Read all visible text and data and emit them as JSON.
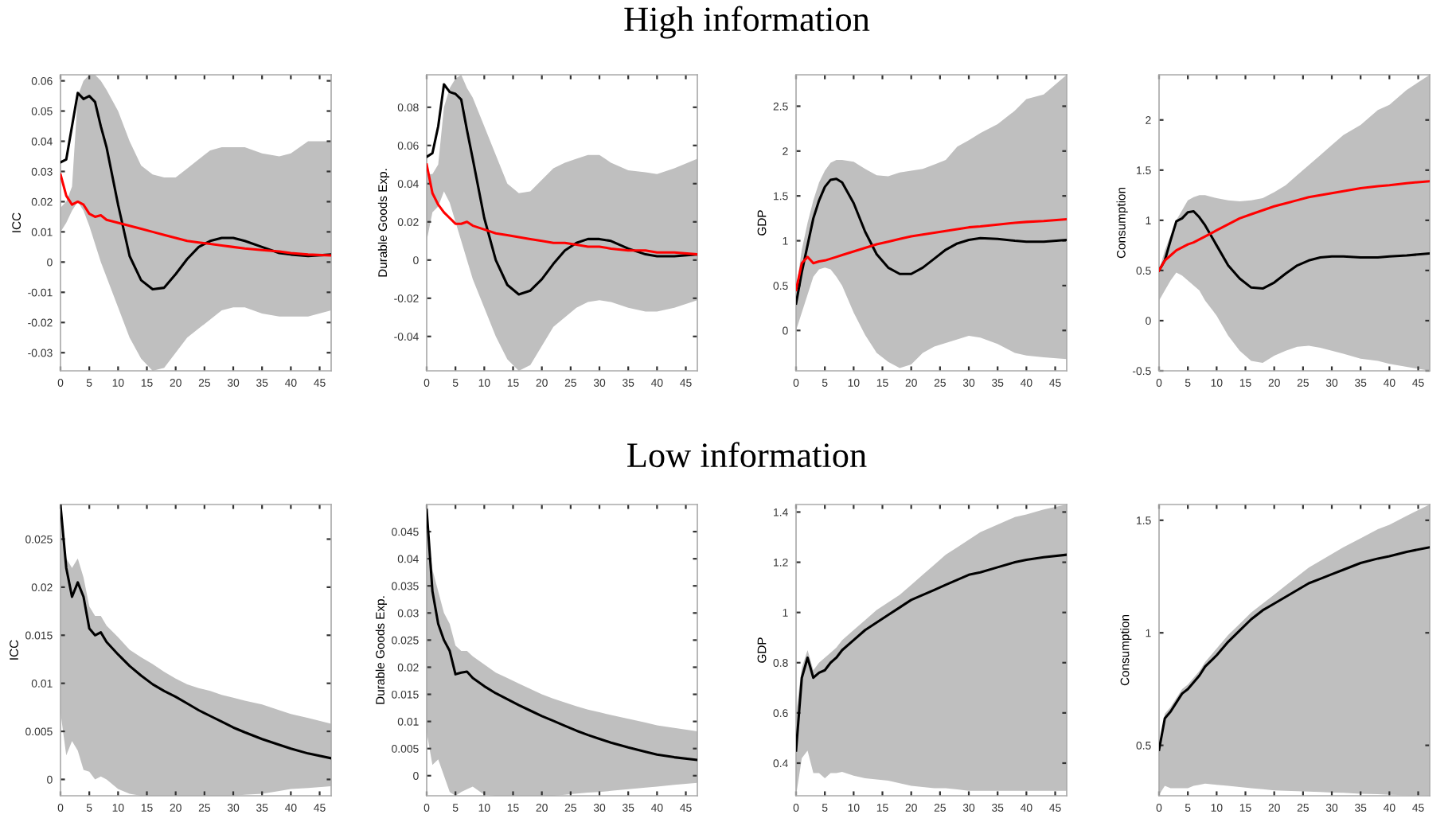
{
  "chart_data": [
    {
      "type": "line",
      "ylabel": "ICC",
      "xlim": [
        0,
        47
      ],
      "xticks": [
        0,
        5,
        10,
        15,
        20,
        25,
        30,
        35,
        40,
        45
      ],
      "ylim": [
        -0.036,
        0.062
      ],
      "yticks": [
        -0.03,
        -0.02,
        -0.01,
        0,
        0.01,
        0.02,
        0.03,
        0.04,
        0.05,
        0.06
      ],
      "grid": false,
      "legend": false,
      "series": [
        {
          "color": "#000000",
          "x": [
            0,
            1,
            2,
            3,
            4,
            5,
            6,
            7,
            8,
            10,
            12,
            14,
            16,
            18,
            20,
            22,
            24,
            26,
            28,
            30,
            32,
            35,
            38,
            40,
            43,
            47
          ],
          "values": [
            0.033,
            0.034,
            0.045,
            0.056,
            0.054,
            0.055,
            0.053,
            0.045,
            0.038,
            0.019,
            0.002,
            -0.006,
            -0.009,
            -0.0085,
            -0.004,
            0.001,
            0.005,
            0.007,
            0.008,
            0.008,
            0.007,
            0.005,
            0.003,
            0.0025,
            0.002,
            0.0025
          ],
          "lower": [
            0.01,
            0.013,
            0.017,
            0.02,
            0.017,
            0.012,
            0.006,
            0,
            -0.005,
            -0.015,
            -0.025,
            -0.032,
            -0.036,
            -0.035,
            -0.03,
            -0.025,
            -0.022,
            -0.019,
            -0.016,
            -0.015,
            -0.015,
            -0.017,
            -0.018,
            -0.018,
            -0.018,
            -0.016
          ],
          "upper": [
            0.018,
            0.02,
            0.025,
            0.055,
            0.06,
            0.062,
            0.062,
            0.06,
            0.057,
            0.05,
            0.04,
            0.032,
            0.029,
            0.028,
            0.028,
            0.031,
            0.034,
            0.037,
            0.038,
            0.038,
            0.038,
            0.036,
            0.035,
            0.036,
            0.04,
            0.04
          ]
        },
        {
          "color": "#ff0000",
          "x": [
            0,
            1,
            2,
            3,
            4,
            5,
            6,
            7,
            8,
            10,
            12,
            14,
            16,
            18,
            20,
            22,
            24,
            26,
            28,
            30,
            32,
            35,
            38,
            40,
            43,
            47
          ],
          "values": [
            0.029,
            0.022,
            0.019,
            0.02,
            0.019,
            0.016,
            0.015,
            0.0155,
            0.014,
            0.013,
            0.012,
            0.011,
            0.01,
            0.009,
            0.008,
            0.007,
            0.0065,
            0.006,
            0.0055,
            0.005,
            0.0045,
            0.004,
            0.0035,
            0.003,
            0.0025,
            0.0022
          ]
        }
      ]
    },
    {
      "type": "line",
      "title": "High information",
      "ylabel": "Durable Goods Exp.",
      "xlim": [
        0,
        47
      ],
      "xticks": [
        0,
        5,
        10,
        15,
        20,
        25,
        30,
        35,
        40,
        45
      ],
      "ylim": [
        -0.058,
        0.097
      ],
      "yticks": [
        -0.04,
        -0.02,
        0,
        0.02,
        0.04,
        0.06,
        0.08
      ],
      "grid": false,
      "legend": false,
      "series": [
        {
          "color": "#000000",
          "x": [
            0,
            1,
            2,
            3,
            4,
            5,
            6,
            7,
            8,
            10,
            12,
            14,
            16,
            18,
            20,
            22,
            24,
            26,
            28,
            30,
            32,
            35,
            38,
            40,
            43,
            47
          ],
          "values": [
            0.054,
            0.056,
            0.07,
            0.092,
            0.088,
            0.087,
            0.084,
            0.068,
            0.053,
            0.022,
            0,
            -0.013,
            -0.018,
            -0.016,
            -0.01,
            -0.002,
            0.005,
            0.009,
            0.011,
            0.011,
            0.01,
            0.006,
            0.003,
            0.002,
            0.002,
            0.003
          ],
          "lower": [
            0.01,
            0.025,
            0.028,
            0.036,
            0.03,
            0.02,
            0.01,
            0,
            -0.01,
            -0.025,
            -0.04,
            -0.052,
            -0.058,
            -0.055,
            -0.045,
            -0.035,
            -0.03,
            -0.025,
            -0.022,
            -0.021,
            -0.022,
            -0.025,
            -0.027,
            -0.027,
            -0.025,
            -0.021
          ],
          "upper": [
            0.045,
            0.045,
            0.05,
            0.08,
            0.09,
            0.095,
            0.097,
            0.09,
            0.085,
            0.07,
            0.055,
            0.04,
            0.035,
            0.036,
            0.042,
            0.048,
            0.051,
            0.053,
            0.055,
            0.055,
            0.051,
            0.047,
            0.046,
            0.045,
            0.048,
            0.053
          ]
        },
        {
          "color": "#ff0000",
          "x": [
            0,
            1,
            2,
            3,
            4,
            5,
            6,
            7,
            8,
            10,
            12,
            14,
            16,
            18,
            20,
            22,
            24,
            26,
            28,
            30,
            32,
            35,
            38,
            40,
            43,
            47
          ],
          "values": [
            0.05,
            0.035,
            0.029,
            0.025,
            0.022,
            0.019,
            0.019,
            0.02,
            0.018,
            0.016,
            0.014,
            0.013,
            0.012,
            0.011,
            0.01,
            0.009,
            0.009,
            0.008,
            0.007,
            0.007,
            0.006,
            0.005,
            0.005,
            0.004,
            0.004,
            0.003
          ]
        }
      ]
    },
    {
      "type": "line",
      "ylabel": "GDP",
      "xlim": [
        0,
        47
      ],
      "xticks": [
        0,
        5,
        10,
        15,
        20,
        25,
        30,
        35,
        40,
        45
      ],
      "ylim": [
        -0.45,
        2.85
      ],
      "yticks": [
        0,
        0.5,
        1,
        1.5,
        2,
        2.5
      ],
      "grid": false,
      "legend": false,
      "series": [
        {
          "color": "#000000",
          "x": [
            0,
            1,
            2,
            3,
            4,
            5,
            6,
            7,
            8,
            10,
            12,
            14,
            16,
            18,
            20,
            22,
            24,
            26,
            28,
            30,
            32,
            35,
            38,
            40,
            43,
            47
          ],
          "values": [
            0.3,
            0.65,
            0.95,
            1.25,
            1.45,
            1.6,
            1.68,
            1.69,
            1.65,
            1.42,
            1.1,
            0.85,
            0.7,
            0.63,
            0.63,
            0.7,
            0.8,
            0.9,
            0.97,
            1.01,
            1.03,
            1.02,
            1.0,
            0.99,
            0.99,
            1.01
          ],
          "lower": [
            0,
            0.2,
            0.4,
            0.6,
            0.68,
            0.7,
            0.68,
            0.6,
            0.5,
            0.2,
            -0.05,
            -0.25,
            -0.35,
            -0.42,
            -0.38,
            -0.25,
            -0.18,
            -0.14,
            -0.1,
            -0.06,
            -0.08,
            -0.15,
            -0.25,
            -0.28,
            -0.3,
            -0.32
          ],
          "upper": [
            0.45,
            0.9,
            1.2,
            1.45,
            1.65,
            1.78,
            1.87,
            1.9,
            1.9,
            1.88,
            1.8,
            1.73,
            1.72,
            1.76,
            1.78,
            1.8,
            1.85,
            1.9,
            2.05,
            2.12,
            2.2,
            2.3,
            2.45,
            2.58,
            2.63,
            2.85
          ]
        },
        {
          "color": "#ff0000",
          "x": [
            0,
            1,
            2,
            3,
            4,
            5,
            6,
            7,
            8,
            10,
            12,
            14,
            16,
            18,
            20,
            22,
            24,
            26,
            28,
            30,
            32,
            35,
            38,
            40,
            43,
            47
          ],
          "values": [
            0.45,
            0.75,
            0.82,
            0.75,
            0.77,
            0.78,
            0.8,
            0.82,
            0.84,
            0.88,
            0.92,
            0.96,
            0.99,
            1.02,
            1.05,
            1.07,
            1.09,
            1.11,
            1.13,
            1.15,
            1.16,
            1.18,
            1.2,
            1.21,
            1.22,
            1.24
          ]
        }
      ]
    },
    {
      "type": "line",
      "ylabel": "Consumption",
      "xlim": [
        0,
        47
      ],
      "xticks": [
        0,
        5,
        10,
        15,
        20,
        25,
        30,
        35,
        40,
        45
      ],
      "ylim": [
        -0.5,
        2.45
      ],
      "yticks": [
        -0.5,
        0,
        0.5,
        1,
        1.5,
        2
      ],
      "grid": false,
      "legend": false,
      "series": [
        {
          "color": "#000000",
          "x": [
            0,
            1,
            2,
            3,
            4,
            5,
            6,
            7,
            8,
            10,
            12,
            14,
            16,
            18,
            20,
            22,
            24,
            26,
            28,
            30,
            32,
            35,
            38,
            40,
            43,
            47
          ],
          "values": [
            0.5,
            0.6,
            0.8,
            0.99,
            1.02,
            1.08,
            1.09,
            1.03,
            0.95,
            0.75,
            0.55,
            0.42,
            0.33,
            0.32,
            0.38,
            0.47,
            0.55,
            0.6,
            0.63,
            0.64,
            0.64,
            0.63,
            0.63,
            0.64,
            0.65,
            0.67
          ],
          "lower": [
            0.2,
            0.3,
            0.4,
            0.48,
            0.45,
            0.4,
            0.35,
            0.3,
            0.2,
            0.05,
            -0.15,
            -0.3,
            -0.4,
            -0.42,
            -0.35,
            -0.3,
            -0.26,
            -0.25,
            -0.27,
            -0.3,
            -0.33,
            -0.38,
            -0.4,
            -0.43,
            -0.46,
            -0.5
          ],
          "upper": [
            0.5,
            0.7,
            0.85,
            1.0,
            1.1,
            1.2,
            1.23,
            1.25,
            1.25,
            1.22,
            1.2,
            1.19,
            1.2,
            1.22,
            1.28,
            1.35,
            1.45,
            1.55,
            1.65,
            1.75,
            1.85,
            1.95,
            2.1,
            2.15,
            2.3,
            2.45
          ]
        },
        {
          "color": "#ff0000",
          "x": [
            0,
            1,
            2,
            3,
            4,
            5,
            6,
            7,
            8,
            10,
            12,
            14,
            16,
            18,
            20,
            22,
            24,
            26,
            28,
            30,
            32,
            35,
            38,
            40,
            43,
            47
          ],
          "values": [
            0.5,
            0.6,
            0.65,
            0.7,
            0.73,
            0.76,
            0.78,
            0.81,
            0.84,
            0.9,
            0.96,
            1.02,
            1.06,
            1.1,
            1.14,
            1.17,
            1.2,
            1.23,
            1.25,
            1.27,
            1.29,
            1.32,
            1.34,
            1.35,
            1.37,
            1.39
          ]
        }
      ]
    },
    {
      "type": "line",
      "ylabel": "ICC",
      "xlim": [
        0,
        47
      ],
      "xticks": [
        0,
        5,
        10,
        15,
        20,
        25,
        30,
        35,
        40,
        45
      ],
      "ylim": [
        -0.0017,
        0.0286
      ],
      "yticks": [
        0,
        0.005,
        0.01,
        0.015,
        0.02,
        0.025
      ],
      "grid": false,
      "legend": false,
      "series": [
        {
          "color": "#000000",
          "x": [
            0,
            1,
            2,
            3,
            4,
            5,
            6,
            7,
            8,
            10,
            12,
            14,
            16,
            18,
            20,
            22,
            24,
            26,
            28,
            30,
            32,
            35,
            38,
            40,
            43,
            47
          ],
          "values": [
            0.0285,
            0.022,
            0.019,
            0.0205,
            0.019,
            0.0157,
            0.015,
            0.0153,
            0.0143,
            0.013,
            0.0118,
            0.0108,
            0.0099,
            0.0092,
            0.0086,
            0.0079,
            0.0072,
            0.0066,
            0.006,
            0.0054,
            0.0049,
            0.0042,
            0.0036,
            0.0032,
            0.0027,
            0.0022
          ],
          "lower": [
            0.007,
            0.0025,
            0.004,
            0.003,
            0.001,
            0.0008,
            0,
            0.0003,
            0,
            -0.001,
            -0.0015,
            -0.0017,
            -0.0017,
            -0.0017,
            -0.0017,
            -0.0017,
            -0.0017,
            -0.0017,
            -0.0017,
            -0.0017,
            -0.0016,
            -0.0015,
            -0.0012,
            -0.001,
            -0.0009,
            -0.0007
          ],
          "upper": [
            0.028,
            0.023,
            0.022,
            0.023,
            0.021,
            0.018,
            0.017,
            0.017,
            0.016,
            0.0148,
            0.0135,
            0.0127,
            0.012,
            0.0112,
            0.0105,
            0.0099,
            0.0095,
            0.0092,
            0.0088,
            0.0085,
            0.0082,
            0.0078,
            0.0072,
            0.0068,
            0.0064,
            0.0058
          ]
        }
      ]
    },
    {
      "type": "line",
      "title": "Low information",
      "ylabel": "Durable Goods Exp.",
      "xlim": [
        0,
        47
      ],
      "xticks": [
        0,
        5,
        10,
        15,
        20,
        25,
        30,
        35,
        40,
        45
      ],
      "ylim": [
        -0.0037,
        0.05
      ],
      "yticks": [
        0,
        0.005,
        0.01,
        0.015,
        0.02,
        0.025,
        0.03,
        0.035,
        0.04,
        0.045
      ],
      "grid": false,
      "legend": false,
      "series": [
        {
          "color": "#000000",
          "x": [
            0,
            1,
            2,
            3,
            4,
            5,
            6,
            7,
            8,
            10,
            12,
            14,
            16,
            18,
            20,
            22,
            24,
            26,
            28,
            30,
            32,
            35,
            38,
            40,
            43,
            47
          ],
          "values": [
            0.049,
            0.034,
            0.028,
            0.025,
            0.023,
            0.0187,
            0.019,
            0.0192,
            0.018,
            0.0165,
            0.0152,
            0.0141,
            0.013,
            0.012,
            0.011,
            0.0101,
            0.0092,
            0.0083,
            0.0075,
            0.0068,
            0.0061,
            0.0052,
            0.0044,
            0.0039,
            0.0034,
            0.0029
          ],
          "lower": [
            0.008,
            0.002,
            0.003,
            0,
            -0.003,
            -0.0037,
            -0.003,
            -0.0025,
            -0.002,
            -0.0035,
            -0.0037,
            -0.0037,
            -0.0037,
            -0.0037,
            -0.0037,
            -0.0037,
            -0.0035,
            -0.0033,
            -0.0031,
            -0.003,
            -0.0028,
            -0.0025,
            -0.0022,
            -0.002,
            -0.0017,
            -0.0013
          ],
          "upper": [
            0.046,
            0.038,
            0.034,
            0.03,
            0.028,
            0.024,
            0.023,
            0.023,
            0.022,
            0.0205,
            0.019,
            0.018,
            0.017,
            0.016,
            0.015,
            0.0142,
            0.0135,
            0.0128,
            0.0122,
            0.0117,
            0.0112,
            0.0105,
            0.0098,
            0.0093,
            0.0088,
            0.0082
          ]
        }
      ]
    },
    {
      "type": "line",
      "ylabel": "GDP",
      "xlim": [
        0,
        47
      ],
      "xticks": [
        0,
        5,
        10,
        15,
        20,
        25,
        30,
        35,
        40,
        45
      ],
      "ylim": [
        0.27,
        1.43
      ],
      "yticks": [
        0.4,
        0.6,
        0.8,
        1,
        1.2,
        1.4
      ],
      "grid": false,
      "legend": false,
      "series": [
        {
          "color": "#000000",
          "x": [
            0,
            1,
            2,
            3,
            4,
            5,
            6,
            7,
            8,
            10,
            12,
            14,
            16,
            18,
            20,
            22,
            24,
            26,
            28,
            30,
            32,
            35,
            38,
            40,
            43,
            47
          ],
          "values": [
            0.45,
            0.74,
            0.82,
            0.74,
            0.76,
            0.77,
            0.8,
            0.82,
            0.85,
            0.89,
            0.93,
            0.96,
            0.99,
            1.02,
            1.05,
            1.07,
            1.09,
            1.11,
            1.13,
            1.15,
            1.16,
            1.18,
            1.2,
            1.21,
            1.22,
            1.23
          ],
          "lower": [
            0.27,
            0.42,
            0.45,
            0.36,
            0.36,
            0.34,
            0.36,
            0.36,
            0.365,
            0.35,
            0.34,
            0.335,
            0.33,
            0.32,
            0.31,
            0.305,
            0.3,
            0.3,
            0.295,
            0.29,
            0.29,
            0.29,
            0.29,
            0.29,
            0.29,
            0.29
          ],
          "upper": [
            0.6,
            0.78,
            0.85,
            0.77,
            0.8,
            0.82,
            0.84,
            0.86,
            0.89,
            0.93,
            0.97,
            1.01,
            1.04,
            1.07,
            1.11,
            1.15,
            1.19,
            1.23,
            1.26,
            1.29,
            1.32,
            1.35,
            1.38,
            1.39,
            1.41,
            1.43
          ]
        }
      ]
    },
    {
      "type": "line",
      "ylabel": "Consumption",
      "xlim": [
        0,
        47
      ],
      "xticks": [
        0,
        5,
        10,
        15,
        20,
        25,
        30,
        35,
        40,
        45
      ],
      "ylim": [
        0.276,
        1.57
      ],
      "yticks": [
        0.5,
        1,
        1.5
      ],
      "grid": false,
      "legend": false,
      "series": [
        {
          "color": "#000000",
          "x": [
            0,
            1,
            2,
            3,
            4,
            5,
            6,
            7,
            8,
            10,
            12,
            14,
            16,
            18,
            20,
            22,
            24,
            26,
            28,
            30,
            32,
            35,
            38,
            40,
            43,
            47
          ],
          "values": [
            0.48,
            0.62,
            0.65,
            0.69,
            0.73,
            0.75,
            0.78,
            0.81,
            0.85,
            0.9,
            0.96,
            1.01,
            1.06,
            1.1,
            1.13,
            1.16,
            1.19,
            1.22,
            1.24,
            1.26,
            1.28,
            1.31,
            1.33,
            1.34,
            1.36,
            1.38
          ],
          "lower": [
            0.28,
            0.32,
            0.31,
            0.31,
            0.31,
            0.31,
            0.32,
            0.325,
            0.33,
            0.325,
            0.32,
            0.315,
            0.31,
            0.305,
            0.3,
            0.298,
            0.296,
            0.295,
            0.293,
            0.29,
            0.289,
            0.285,
            0.283,
            0.28,
            0.279,
            0.277
          ],
          "upper": [
            0.49,
            0.64,
            0.67,
            0.71,
            0.75,
            0.77,
            0.8,
            0.83,
            0.87,
            0.93,
            0.99,
            1.04,
            1.09,
            1.13,
            1.17,
            1.21,
            1.25,
            1.29,
            1.32,
            1.35,
            1.38,
            1.42,
            1.46,
            1.48,
            1.52,
            1.57
          ]
        }
      ]
    }
  ]
}
